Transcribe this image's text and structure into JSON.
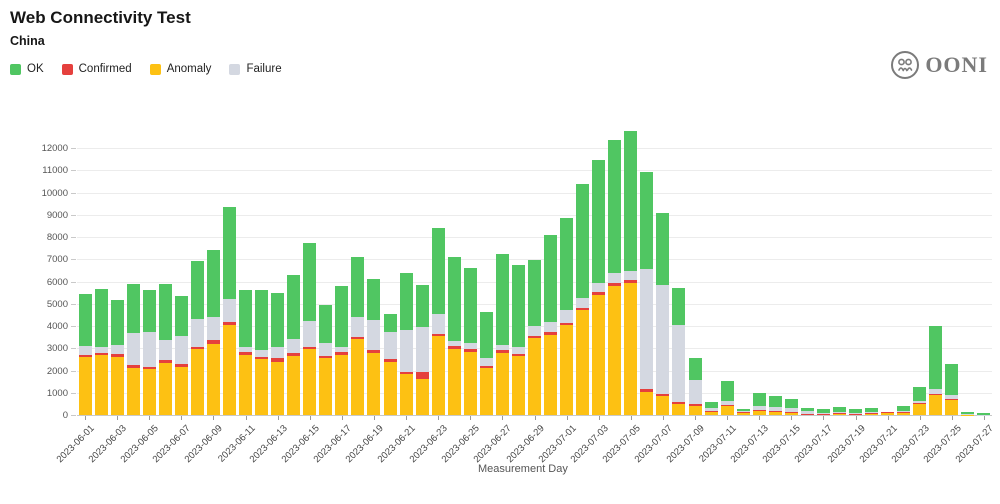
{
  "header": {
    "title": "Web Connectivity Test",
    "subtitle": "China"
  },
  "legend": [
    {
      "key": "ok",
      "label": "OK",
      "color": "#50c662"
    },
    {
      "key": "confirmed",
      "label": "Confirmed",
      "color": "#e5403d"
    },
    {
      "key": "anomaly",
      "label": "Anomaly",
      "color": "#fdc113"
    },
    {
      "key": "failure",
      "label": "Failure",
      "color": "#d4d8e1"
    }
  ],
  "logo": {
    "text": "OONI"
  },
  "chart_data": {
    "type": "bar",
    "stacked": true,
    "title": "Web Connectivity Test",
    "subtitle": "China",
    "xlabel": "Measurement Day",
    "ylabel": "",
    "ylim": [
      0,
      13000
    ],
    "ytick_step": 1000,
    "grid": true,
    "legend_position": "top-left",
    "stack_order_bottom_to_top": [
      "anomaly",
      "confirmed",
      "failure",
      "ok"
    ],
    "colors": {
      "ok": "#50c662",
      "confirmed": "#e5403d",
      "anomaly": "#fdc113",
      "failure": "#d4d8e1"
    },
    "categories": [
      "2023-06-01",
      "2023-06-02",
      "2023-06-03",
      "2023-06-04",
      "2023-06-05",
      "2023-06-06",
      "2023-06-07",
      "2023-06-08",
      "2023-06-09",
      "2023-06-10",
      "2023-06-11",
      "2023-06-12",
      "2023-06-13",
      "2023-06-14",
      "2023-06-15",
      "2023-06-16",
      "2023-06-17",
      "2023-06-18",
      "2023-06-19",
      "2023-06-20",
      "2023-06-21",
      "2023-06-22",
      "2023-06-23",
      "2023-06-24",
      "2023-06-25",
      "2023-06-26",
      "2023-06-27",
      "2023-06-28",
      "2023-06-29",
      "2023-06-30",
      "2023-07-01",
      "2023-07-02",
      "2023-07-03",
      "2023-07-04",
      "2023-07-05",
      "2023-07-06",
      "2023-07-07",
      "2023-07-08",
      "2023-07-09",
      "2023-07-10",
      "2023-07-11",
      "2023-07-12",
      "2023-07-13",
      "2023-07-14",
      "2023-07-15",
      "2023-07-16",
      "2023-07-17",
      "2023-07-18",
      "2023-07-19",
      "2023-07-20",
      "2023-07-21",
      "2023-07-22",
      "2023-07-23",
      "2023-07-24",
      "2023-07-25",
      "2023-07-26",
      "2023-07-27"
    ],
    "series": [
      {
        "name": "Anomaly",
        "key": "anomaly",
        "values": [
          2600,
          2700,
          2600,
          2100,
          2050,
          2350,
          2150,
          2950,
          3200,
          4050,
          2700,
          2500,
          2400,
          2650,
          2950,
          2550,
          2700,
          3400,
          2800,
          2400,
          1850,
          1600,
          3550,
          2950,
          2850,
          2100,
          2800,
          2650,
          3450,
          3600,
          4050,
          4700,
          5400,
          5800,
          5950,
          1050,
          850,
          480,
          420,
          150,
          430,
          80,
          180,
          140,
          120,
          40,
          40,
          50,
          40,
          60,
          90,
          110,
          520,
          930,
          670,
          20,
          10
        ]
      },
      {
        "name": "Confirmed",
        "key": "confirmed",
        "values": [
          90,
          100,
          150,
          150,
          120,
          120,
          120,
          120,
          150,
          150,
          120,
          120,
          150,
          120,
          120,
          100,
          120,
          120,
          120,
          100,
          100,
          350,
          100,
          130,
          120,
          120,
          110,
          110,
          120,
          120,
          100,
          100,
          120,
          120,
          110,
          130,
          110,
          90,
          90,
          20,
          30,
          70,
          30,
          30,
          20,
          10,
          10,
          40,
          10,
          10,
          60,
          10,
          10,
          30,
          30,
          0,
          0
        ]
      },
      {
        "name": "Failure",
        "key": "failure",
        "values": [
          400,
          250,
          400,
          1450,
          1580,
          900,
          1300,
          1250,
          1050,
          1000,
          250,
          300,
          500,
          650,
          1150,
          600,
          250,
          900,
          1350,
          1230,
          1850,
          2000,
          900,
          250,
          250,
          330,
          240,
          280,
          450,
          450,
          550,
          450,
          400,
          450,
          420,
          5400,
          4880,
          3470,
          1060,
          130,
          170,
          40,
          200,
          180,
          160,
          110,
          60,
          60,
          50,
          60,
          0,
          40,
          90,
          190,
          180,
          20,
          10
        ]
      },
      {
        "name": "OK",
        "key": "ok",
        "values": [
          2360,
          2600,
          2000,
          2200,
          1850,
          2530,
          1780,
          2580,
          3000,
          4150,
          2530,
          2680,
          2450,
          2880,
          3500,
          1700,
          2710,
          2660,
          1830,
          820,
          2570,
          1890,
          3840,
          3790,
          3370,
          2090,
          4070,
          3700,
          2960,
          3920,
          4170,
          5120,
          5540,
          5990,
          6280,
          4360,
          3250,
          1650,
          980,
          300,
          900,
          70,
          590,
          500,
          400,
          170,
          140,
          190,
          150,
          170,
          0,
          260,
          650,
          2850,
          1420,
          110,
          80
        ]
      }
    ],
    "x_labeled_every": 2
  }
}
